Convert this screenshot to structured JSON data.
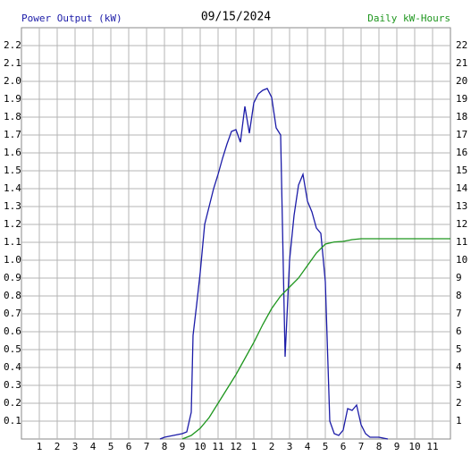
{
  "chart_data": {
    "type": "line",
    "title": "09/15/2024",
    "ylabel": "Power Output (kW)",
    "y2label": "Daily kW-Hours",
    "xlim": [
      0,
      24
    ],
    "xticks": [
      1,
      2,
      3,
      4,
      5,
      6,
      7,
      8,
      9,
      10,
      11,
      12,
      {
        "value": 13,
        "label": "1"
      },
      {
        "value": 14,
        "label": "2"
      },
      {
        "value": 15,
        "label": "3"
      },
      {
        "value": 16,
        "label": "4"
      },
      {
        "value": 17,
        "label": "5"
      },
      {
        "value": 18,
        "label": "6"
      },
      {
        "value": 19,
        "label": "7"
      },
      {
        "value": 20,
        "label": "8"
      },
      {
        "value": 21,
        "label": "9"
      },
      {
        "value": 22,
        "label": "10"
      },
      {
        "value": 23,
        "label": "11"
      }
    ],
    "ylim": [
      0,
      2.3
    ],
    "yticks": [
      0.1,
      0.2,
      0.3,
      0.4,
      0.5,
      0.6,
      0.7,
      0.8,
      0.9,
      {
        "value": 1,
        "label": "1.0"
      },
      1.1,
      1.2,
      1.3,
      1.4,
      1.5,
      1.6,
      1.7,
      1.8,
      1.9,
      {
        "value": 2,
        "label": "2.0"
      },
      2.1,
      2.2
    ],
    "y2lim": [
      0,
      23
    ],
    "y2ticks": [
      1,
      2,
      3,
      4,
      5,
      6,
      7,
      8,
      9,
      10,
      11,
      12,
      13,
      14,
      15,
      16,
      17,
      18,
      19,
      20,
      21,
      22
    ],
    "grid": true,
    "series": [
      {
        "name": "Power Output (kW)",
        "color": "#1c1ca8",
        "x": [
          7.75,
          8,
          8.5,
          9,
          9.25,
          9.5,
          9.6,
          9.8,
          10,
          10.25,
          10.5,
          10.75,
          11,
          11.25,
          11.5,
          11.75,
          12,
          12.25,
          12.5,
          12.75,
          13,
          13.25,
          13.5,
          13.75,
          14,
          14.25,
          14.5,
          14.75,
          15,
          15.25,
          15.5,
          15.75,
          16,
          16.25,
          16.5,
          16.75,
          17,
          17.25,
          17.5,
          17.75,
          18,
          18.25,
          18.5,
          18.75,
          19,
          19.25,
          19.5,
          20,
          20.5
        ],
        "values": [
          0,
          0.01,
          0.02,
          0.03,
          0.04,
          0.15,
          0.58,
          0.75,
          0.93,
          1.2,
          1.3,
          1.4,
          1.48,
          1.57,
          1.65,
          1.72,
          1.73,
          1.66,
          1.86,
          1.71,
          1.88,
          1.93,
          1.95,
          1.96,
          1.91,
          1.74,
          1.7,
          0.46,
          1.0,
          1.25,
          1.42,
          1.48,
          1.33,
          1.27,
          1.18,
          1.15,
          0.88,
          0.1,
          0.03,
          0.02,
          0.05,
          0.17,
          0.16,
          0.19,
          0.08,
          0.03,
          0.01,
          0.01,
          0
        ]
      },
      {
        "name": "Daily kW-Hours",
        "color": "#1e961e",
        "axis": "y2",
        "x": [
          9,
          9.5,
          10,
          10.5,
          11,
          11.5,
          12,
          12.5,
          13,
          13.5,
          14,
          14.5,
          15,
          15.5,
          16,
          16.5,
          17,
          17.5,
          18,
          18.5,
          19,
          24
        ],
        "values": [
          0,
          0.2,
          0.6,
          1.2,
          2.0,
          2.8,
          3.6,
          4.5,
          5.4,
          6.4,
          7.3,
          8.0,
          8.5,
          9.0,
          9.7,
          10.4,
          10.9,
          11.02,
          11.05,
          11.15,
          11.2,
          11.2
        ]
      }
    ]
  }
}
